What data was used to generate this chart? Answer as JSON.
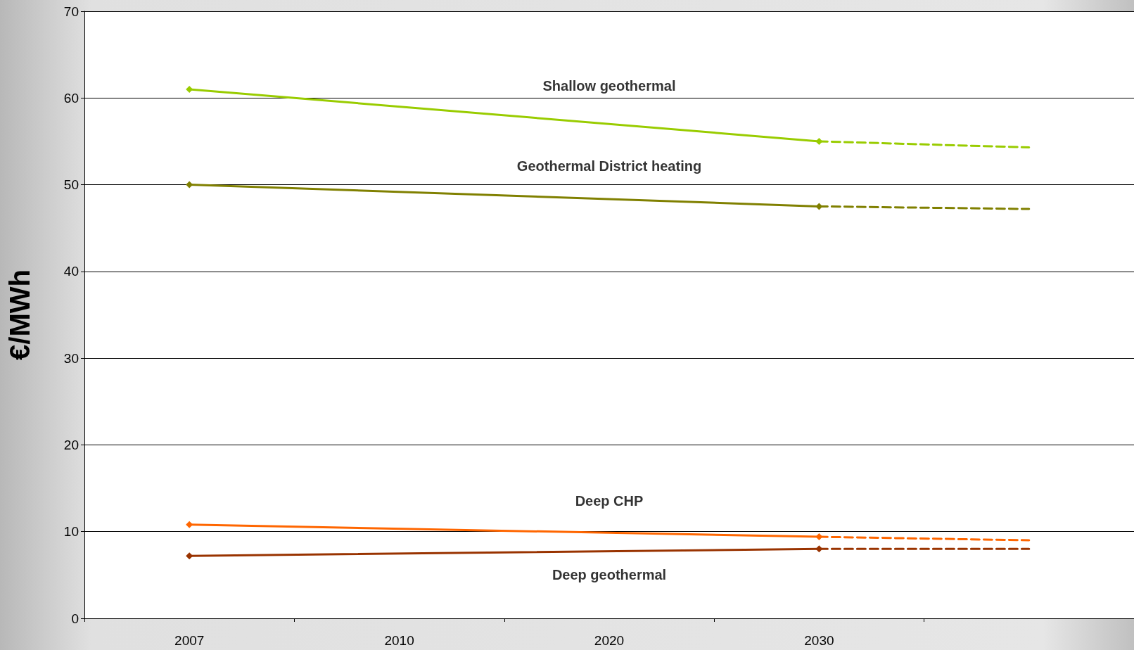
{
  "chart_data": {
    "type": "line",
    "ylabel": "€/MWh",
    "categories": [
      "2007",
      "2010",
      "2020",
      "2030",
      null
    ],
    "ylim": [
      0,
      70
    ],
    "yticks": [
      0,
      10,
      20,
      30,
      40,
      50,
      60,
      70
    ],
    "grid": "y",
    "marker": "diamond",
    "series": [
      {
        "name": "Shallow geothermal",
        "color": "#99cc00",
        "values": [
          61,
          null,
          null,
          55,
          null
        ]
      },
      {
        "name": "Geothermal District heating",
        "color": "#808000",
        "values": [
          50,
          null,
          null,
          47.5,
          null
        ]
      },
      {
        "name": "Deep CHP",
        "color": "#ff6600",
        "values": [
          10.8,
          null,
          null,
          9.4,
          null
        ]
      },
      {
        "name": "Deep geothermal",
        "color": "#993300",
        "values": [
          7.2,
          null,
          null,
          8,
          null
        ]
      },
      {
        "color": "#99cc00",
        "line_style": "dashed",
        "marker": "none",
        "values": [
          null,
          null,
          null,
          55,
          54.3
        ]
      },
      {
        "color": "#808000",
        "line_style": "dashed",
        "marker": "none",
        "values": [
          null,
          null,
          null,
          47.5,
          47.2
        ]
      },
      {
        "color": "#ff6600",
        "line_style": "dashed",
        "marker": "none",
        "values": [
          null,
          null,
          null,
          9.4,
          9
        ]
      },
      {
        "color": "#993300",
        "line_style": "dashed",
        "marker": "none",
        "values": [
          null,
          null,
          null,
          8,
          8
        ]
      }
    ]
  }
}
